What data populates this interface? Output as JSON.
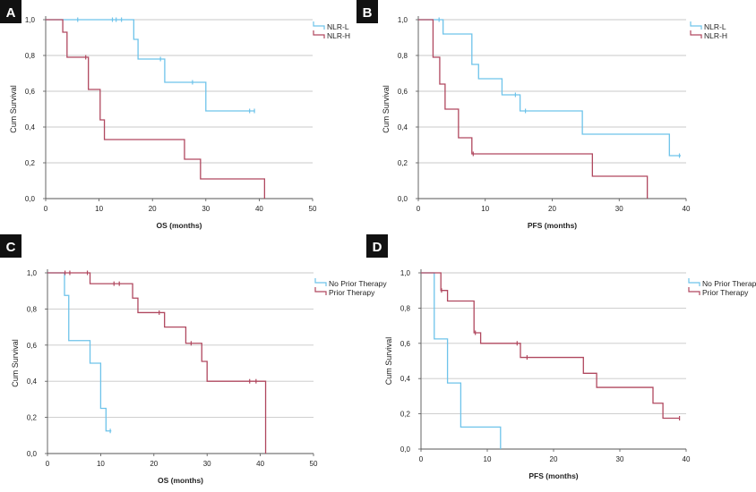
{
  "colors": {
    "series_a": "#6ec3ea",
    "series_b": "#b0485f",
    "grid": "#c8c8c8",
    "axis": "#555555",
    "panel_label_bg": "#111111"
  },
  "chart_data": [
    {
      "panel_label": "A",
      "type": "line",
      "xlabel": "OS (months)",
      "ylabel": "Cum Survival",
      "xlim": [
        0,
        50
      ],
      "ylim": [
        0,
        1
      ],
      "xticks": [
        0,
        10,
        20,
        30,
        40,
        50
      ],
      "xtick_labels": [
        "0",
        "10",
        "20",
        "30",
        "40",
        "50"
      ],
      "yticks": [
        0,
        0.2,
        0.4,
        0.6,
        0.8,
        1.0
      ],
      "ytick_labels": [
        "0,0",
        "0,2",
        "0,4",
        "0,6",
        "0,8",
        "1,0"
      ],
      "grid": true,
      "legend_position": "top-right",
      "series": [
        {
          "name": "NLR-L",
          "color_key": "series_a",
          "steps": [
            [
              0,
              1.0
            ],
            [
              16.5,
              0.89
            ],
            [
              17.3,
              0.78
            ],
            [
              22.3,
              0.65
            ],
            [
              30,
              0.49
            ],
            [
              39.2,
              0.49
            ]
          ],
          "censors": [
            [
              6,
              1.0
            ],
            [
              12.5,
              1.0
            ],
            [
              13.2,
              1.0
            ],
            [
              14.2,
              1.0
            ],
            [
              21.5,
              0.78
            ],
            [
              27.5,
              0.65
            ],
            [
              38.2,
              0.49
            ],
            [
              39.1,
              0.49
            ]
          ]
        },
        {
          "name": "NLR-H",
          "color_key": "series_b",
          "steps": [
            [
              0,
              1.0
            ],
            [
              3.2,
              0.93
            ],
            [
              4,
              0.79
            ],
            [
              8,
              0.61
            ],
            [
              10.2,
              0.44
            ],
            [
              11,
              0.33
            ],
            [
              26,
              0.22
            ],
            [
              29,
              0.11
            ],
            [
              41,
              0.0
            ]
          ],
          "censors": [
            [
              7.5,
              0.79
            ]
          ]
        }
      ]
    },
    {
      "panel_label": "B",
      "type": "line",
      "xlabel": "PFS (months)",
      "ylabel": "Cum Survival",
      "xlim": [
        0,
        40
      ],
      "ylim": [
        0,
        1
      ],
      "xticks": [
        0,
        10,
        20,
        30,
        40
      ],
      "xtick_labels": [
        "0",
        "10",
        "20",
        "30",
        "40"
      ],
      "yticks": [
        0,
        0.2,
        0.4,
        0.6,
        0.8,
        1.0
      ],
      "ytick_labels": [
        "0,0",
        "0,2",
        "0,4",
        "0,6",
        "0,8",
        "1,0"
      ],
      "grid": true,
      "legend_position": "top-right",
      "series": [
        {
          "name": "NLR-L",
          "color_key": "series_a",
          "steps": [
            [
              0,
              1.0
            ],
            [
              3.7,
              0.92
            ],
            [
              8,
              0.75
            ],
            [
              9,
              0.67
            ],
            [
              12.5,
              0.58
            ],
            [
              15.2,
              0.49
            ],
            [
              24.5,
              0.36
            ],
            [
              37.5,
              0.24
            ],
            [
              39.2,
              0.24
            ]
          ],
          "censors": [
            [
              3.1,
              1.0
            ],
            [
              14.5,
              0.58
            ],
            [
              16,
              0.49
            ],
            [
              39,
              0.24
            ]
          ]
        },
        {
          "name": "NLR-H",
          "color_key": "series_b",
          "steps": [
            [
              0,
              1.0
            ],
            [
              2.2,
              0.79
            ],
            [
              3.2,
              0.64
            ],
            [
              4,
              0.5
            ],
            [
              6,
              0.34
            ],
            [
              8,
              0.25
            ],
            [
              26,
              0.125
            ],
            [
              34.2,
              0.0
            ]
          ],
          "censors": [
            [
              8.2,
              0.25
            ]
          ]
        }
      ]
    },
    {
      "panel_label": "C",
      "type": "line",
      "xlabel": "OS (months)",
      "ylabel": "Cum Survival",
      "xlim": [
        0,
        50
      ],
      "ylim": [
        0,
        1
      ],
      "xticks": [
        0,
        10,
        20,
        30,
        40,
        50
      ],
      "xtick_labels": [
        "0",
        "10",
        "20",
        "30",
        "40",
        "50"
      ],
      "yticks": [
        0,
        0.2,
        0.4,
        0.6,
        0.8,
        1.0
      ],
      "ytick_labels": [
        "0,0",
        "0,2",
        "0,4",
        "0,6",
        "0,8",
        "1,0"
      ],
      "grid": true,
      "legend_position": "top-right",
      "series": [
        {
          "name": "No Prior Therapy",
          "color_key": "series_a",
          "steps": [
            [
              0,
              1.0
            ],
            [
              3.2,
              0.875
            ],
            [
              4,
              0.625
            ],
            [
              8,
              0.5
            ],
            [
              10,
              0.25
            ],
            [
              11,
              0.125
            ],
            [
              12,
              0.125
            ]
          ],
          "censors": [
            [
              11.8,
              0.125
            ]
          ]
        },
        {
          "name": "Prior Therapy",
          "color_key": "series_b",
          "steps": [
            [
              0,
              1.0
            ],
            [
              8,
              0.94
            ],
            [
              16,
              0.86
            ],
            [
              17,
              0.78
            ],
            [
              22,
              0.7
            ],
            [
              26,
              0.61
            ],
            [
              29,
              0.51
            ],
            [
              30,
              0.4
            ],
            [
              41,
              0.0
            ]
          ],
          "censors": [
            [
              3.3,
              1.0
            ],
            [
              4.2,
              1.0
            ],
            [
              7.5,
              1.0
            ],
            [
              12.5,
              0.94
            ],
            [
              13.5,
              0.94
            ],
            [
              21,
              0.78
            ],
            [
              27,
              0.61
            ],
            [
              38,
              0.4
            ],
            [
              39.2,
              0.4
            ]
          ]
        }
      ]
    },
    {
      "panel_label": "D",
      "type": "line",
      "xlabel": "PFS (months)",
      "ylabel": "Cum Survival",
      "xlim": [
        0,
        40
      ],
      "ylim": [
        0,
        1
      ],
      "xticks": [
        0,
        10,
        20,
        30,
        40
      ],
      "xtick_labels": [
        "0",
        "10",
        "20",
        "30",
        "40"
      ],
      "yticks": [
        0,
        0.2,
        0.4,
        0.6,
        0.8,
        1.0
      ],
      "ytick_labels": [
        "0,0",
        "0,2",
        "0,4",
        "0,6",
        "0,8",
        "1,0"
      ],
      "grid": true,
      "legend_position": "top-right",
      "series": [
        {
          "name": "No Prior Therapy",
          "color_key": "series_a",
          "steps": [
            [
              0,
              1.0
            ],
            [
              2,
              0.625
            ],
            [
              4,
              0.375
            ],
            [
              6,
              0.125
            ],
            [
              12,
              0.0
            ]
          ],
          "censors": []
        },
        {
          "name": "Prior Therapy",
          "color_key": "series_b",
          "steps": [
            [
              0,
              1.0
            ],
            [
              3,
              0.9
            ],
            [
              4,
              0.84
            ],
            [
              8,
              0.66
            ],
            [
              9,
              0.6
            ],
            [
              15,
              0.52
            ],
            [
              24.5,
              0.43
            ],
            [
              26.5,
              0.35
            ],
            [
              35,
              0.26
            ],
            [
              36.5,
              0.175
            ],
            [
              39,
              0.175
            ]
          ],
          "censors": [
            [
              3.1,
              0.9
            ],
            [
              8.2,
              0.66
            ],
            [
              14.5,
              0.6
            ],
            [
              16,
              0.52
            ],
            [
              39,
              0.175
            ]
          ]
        }
      ]
    }
  ]
}
